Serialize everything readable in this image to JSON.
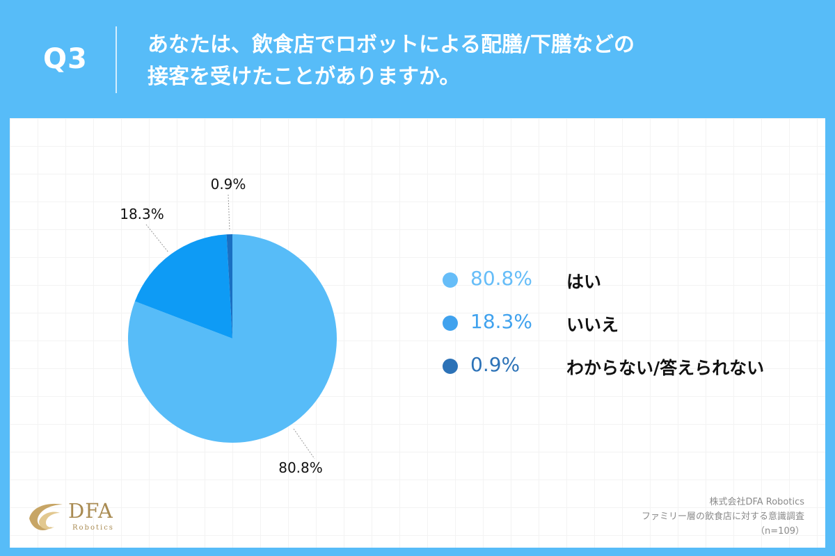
{
  "header": {
    "q_label": "Q3",
    "question_line1": "あなたは、飲食店でロボットによる配膳/下膳などの",
    "question_line2": "接客を受けたことがありますか。"
  },
  "colors": {
    "background": "#57bcf8",
    "slice_yes": "#57bcf8",
    "slice_no": "#0e9bf5",
    "slice_unknown": "#1a6fc2"
  },
  "chart_data": {
    "type": "pie",
    "start": "top",
    "direction": "clockwise",
    "slices": [
      {
        "label": "はい",
        "value": 80.8,
        "display": "80.8%",
        "color": "#57bcf8",
        "legend_color": "#66bdf8"
      },
      {
        "label": "いいえ",
        "value": 18.3,
        "display": "18.3%",
        "color": "#0e9bf5",
        "legend_color": "#40a2ee"
      },
      {
        "label": "わからない/答えられない",
        "value": 0.9,
        "display": "0.9%",
        "color": "#1a6fc2",
        "legend_color": "#2c72b7"
      }
    ]
  },
  "logo": {
    "name": "DFA",
    "sub": "Robotics"
  },
  "source": {
    "line1": "株式会社DFA Robotics",
    "line2": "ファミリー層の飲食店に対する意識調査",
    "line3": "（n=109）"
  }
}
